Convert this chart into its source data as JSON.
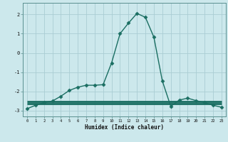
{
  "xlabel": "Humidex (Indice chaleur)",
  "background_color": "#cce8ec",
  "grid_color": "#aacdd4",
  "line_color": "#1a6e62",
  "x_values": [
    0,
    1,
    2,
    3,
    4,
    5,
    6,
    7,
    8,
    9,
    10,
    11,
    12,
    13,
    14,
    15,
    16,
    17,
    18,
    19,
    20,
    21,
    22,
    23
  ],
  "y_main": [
    -2.9,
    -2.72,
    -2.58,
    -2.5,
    -2.25,
    -1.95,
    -1.78,
    -1.68,
    -1.68,
    -1.65,
    -0.52,
    1.0,
    1.55,
    2.05,
    1.85,
    0.82,
    -1.45,
    -2.78,
    -2.45,
    -2.35,
    -2.48,
    -2.58,
    -2.72,
    -2.82
  ],
  "y_flat1": [
    -2.62,
    -2.62,
    -2.62,
    -2.62,
    -2.62,
    -2.62,
    -2.62,
    -2.62,
    -2.62,
    -2.62,
    -2.62,
    -2.62,
    -2.62,
    -2.62,
    -2.62,
    -2.62,
    -2.62,
    -2.62,
    -2.62,
    -2.62,
    -2.62,
    -2.62,
    -2.62,
    -2.62
  ],
  "y_flat2": [
    -2.52,
    -2.52,
    -2.52,
    -2.52,
    -2.52,
    -2.52,
    -2.52,
    -2.52,
    -2.52,
    -2.52,
    -2.52,
    -2.52,
    -2.52,
    -2.52,
    -2.52,
    -2.52,
    -2.52,
    -2.52,
    -2.52,
    -2.52,
    -2.52,
    -2.52,
    -2.52,
    -2.52
  ],
  "ylim": [
    -3.3,
    2.6
  ],
  "xlim": [
    -0.5,
    23.5
  ],
  "yticks": [
    -3,
    -2,
    -1,
    0,
    1,
    2
  ],
  "xticks": [
    0,
    1,
    2,
    3,
    4,
    5,
    6,
    7,
    8,
    9,
    10,
    11,
    12,
    13,
    14,
    15,
    16,
    17,
    18,
    19,
    20,
    21,
    22,
    23
  ],
  "marker": "D",
  "markersize": 2.5,
  "linewidth": 1.0,
  "flat_linewidth": 2.0
}
